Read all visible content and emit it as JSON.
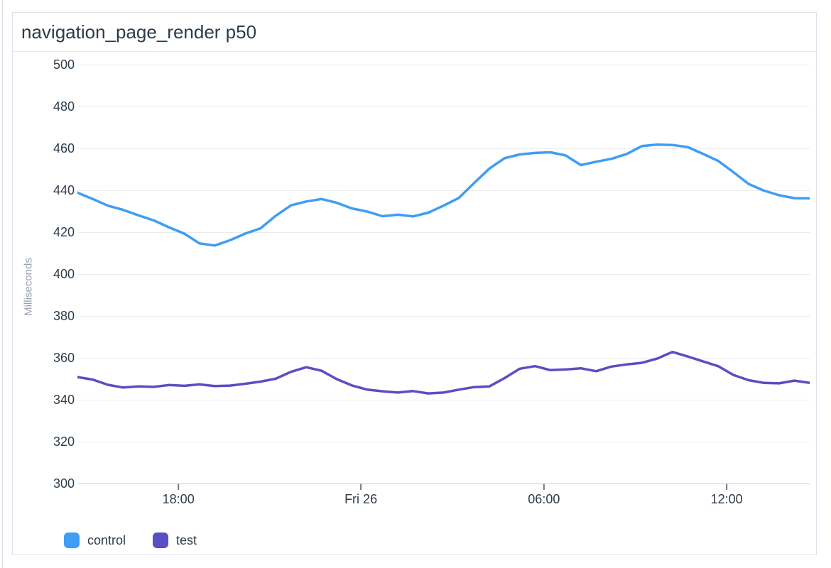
{
  "panel": {
    "title": "navigation_page_render p50"
  },
  "chart_data": {
    "type": "line",
    "title": "navigation_page_render p50",
    "xlabel": "",
    "ylabel": "Milliseconds",
    "ylim": [
      300,
      500
    ],
    "xlim": [
      0,
      24
    ],
    "x_unit": "hours since chart start (~14:40 Thu) spanning into Fri 26",
    "grid": true,
    "legend_position": "bottom-left",
    "y_ticks": [
      300,
      320,
      340,
      360,
      380,
      400,
      420,
      440,
      460,
      480,
      500
    ],
    "x_ticks": [
      {
        "pos": 3.31,
        "label": "18:00"
      },
      {
        "pos": 9.29,
        "label": "Fri 26"
      },
      {
        "pos": 15.29,
        "label": "06:00"
      },
      {
        "pos": 21.28,
        "label": "12:00"
      }
    ],
    "x_hours": [
      0,
      0.5,
      1,
      1.5,
      2,
      2.5,
      3,
      3.5,
      4,
      4.5,
      5,
      5.5,
      6,
      6.5,
      7,
      7.5,
      8,
      8.5,
      9,
      9.5,
      10,
      10.5,
      11,
      11.5,
      12,
      12.5,
      13,
      13.5,
      14,
      14.5,
      15,
      15.5,
      16,
      16.5,
      17,
      17.5,
      18,
      18.5,
      19,
      19.5,
      20,
      20.5,
      21,
      21.5,
      22,
      22.5,
      23,
      23.5,
      24
    ],
    "series": [
      {
        "name": "control",
        "color": "#3f9df3",
        "values": [
          439,
          436,
          432.8,
          430.8,
          428.2,
          425.8,
          422.5,
          419.5,
          414.8,
          413.8,
          416.3,
          419.5,
          422,
          428,
          433,
          434.8,
          436,
          434.2,
          431.5,
          430,
          427.8,
          428.5,
          427.7,
          429.5,
          432.8,
          436.5,
          443.6,
          450.5,
          455.5,
          457.3,
          458,
          458.3,
          456.8,
          452.2,
          453.8,
          455.2,
          457.5,
          461.3,
          462,
          461.8,
          460.8,
          457.6,
          454.2,
          448.8,
          443.2,
          440,
          437.8,
          436.4,
          436.3
        ]
      },
      {
        "name": "test",
        "color": "#5a4ec3",
        "values": [
          351,
          349.8,
          347.3,
          346,
          346.5,
          346.3,
          347.2,
          346.8,
          347.5,
          346.7,
          346.9,
          347.8,
          348.8,
          350.2,
          353.5,
          355.7,
          354,
          350,
          347,
          345,
          344.2,
          343.6,
          344.3,
          343.2,
          343.6,
          345,
          346.2,
          346.5,
          350.5,
          355,
          356.2,
          354.3,
          354.6,
          355.2,
          353.8,
          356,
          357,
          357.8,
          359.8,
          363,
          360.8,
          358.5,
          356.2,
          352,
          349.5,
          348.2,
          348,
          349.3,
          348.2
        ]
      }
    ]
  },
  "colors": {
    "grid_line": "#e9ebee",
    "axis_line": "#c9ccd2",
    "tick_mark": "#6f7b87",
    "text_primary": "#2f3c4b",
    "text_muted": "#99a0aa",
    "panel_border": "#dde1ea",
    "title_divider": "#e8eaf0"
  }
}
